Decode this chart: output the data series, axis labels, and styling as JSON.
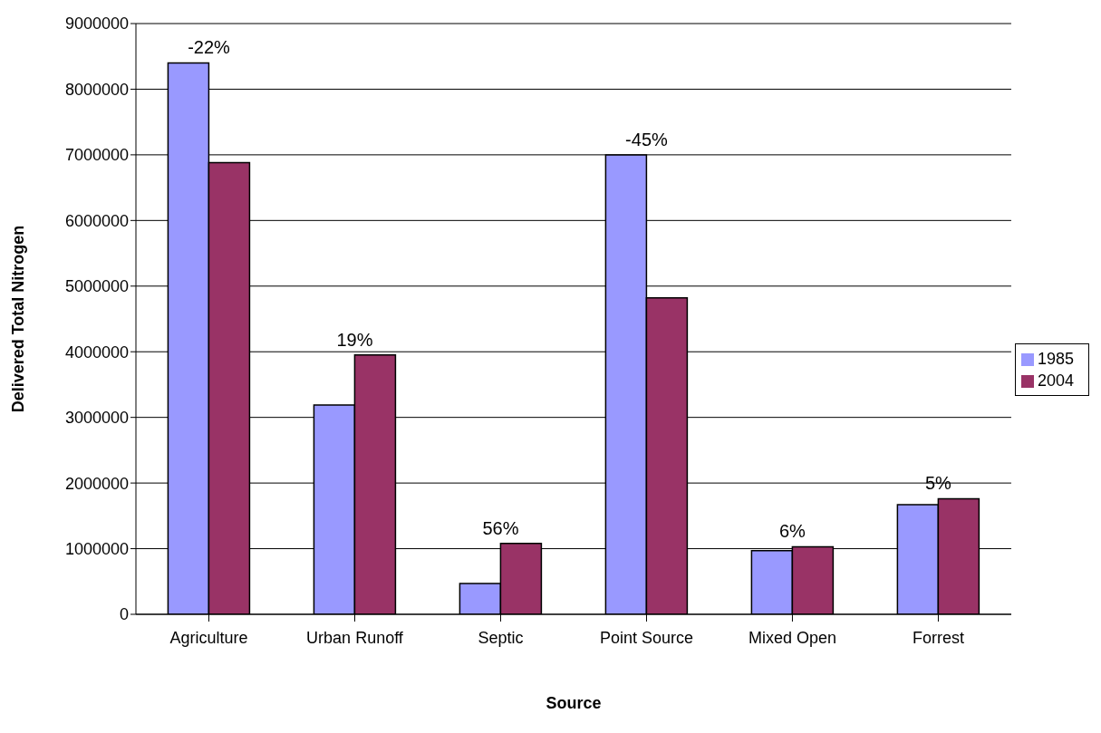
{
  "chart_data": {
    "type": "bar",
    "xlabel": "Source",
    "ylabel": "Delivered Total Nitrogen",
    "categories": [
      "Agriculture",
      "Urban Runoff",
      "Septic",
      "Point Source",
      "Mixed Open",
      "Forrest"
    ],
    "series": [
      {
        "name": "1985",
        "color": "#9999ff",
        "values": [
          8400000,
          3190000,
          470000,
          7000000,
          970000,
          1670000
        ]
      },
      {
        "name": "2004",
        "color": "#993366",
        "values": [
          6880000,
          3950000,
          1080000,
          4820000,
          1030000,
          1760000
        ]
      }
    ],
    "ylim": [
      0,
      9000000
    ],
    "yticks": [
      0,
      1000000,
      2000000,
      3000000,
      4000000,
      5000000,
      6000000,
      7000000,
      8000000,
      9000000
    ],
    "grid": "y",
    "legend": "right",
    "annotations": [
      {
        "text": "-22%",
        "x": "Agriculture",
        "y": 8400000
      },
      {
        "text": "19%",
        "x": "Urban Runoff",
        "y": 3950000
      },
      {
        "text": "56%",
        "x": "Septic",
        "y": 1080000
      },
      {
        "text": "-45%",
        "x": "Point Source",
        "y": 7000000
      },
      {
        "text": "6%",
        "x": "Mixed Open",
        "y": 1030000
      },
      {
        "text": "5%",
        "x": "Forrest",
        "y": 1760000
      }
    ]
  }
}
